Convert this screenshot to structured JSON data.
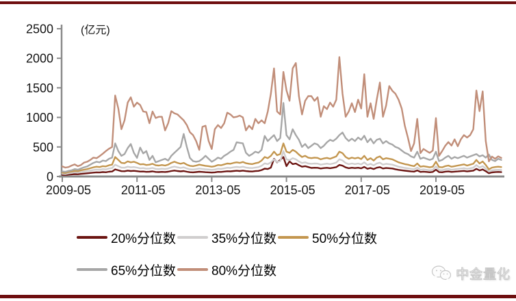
{
  "page": {
    "background": "#ffffff",
    "accent_bar_color": "#6e0e0f",
    "axis_color": "#8a8a8a",
    "text_color": "#151515"
  },
  "chart_data": {
    "type": "line",
    "title": "",
    "unit_label": "(亿元)",
    "x_freq": "monthly",
    "x_start": "2009-05",
    "x_end": "2021-02",
    "xlabel": "",
    "ylabel": "",
    "ylim": [
      0,
      2500
    ],
    "yticks": [
      0,
      500,
      1000,
      1500,
      2000,
      2500
    ],
    "xtick_labels": [
      "2009-05",
      "2011-05",
      "2013-05",
      "2015-05",
      "2017-05",
      "2019-05"
    ],
    "xtick_month_indices": [
      0,
      24,
      48,
      72,
      96,
      120
    ],
    "grid": false,
    "legend_position": "bottom-left",
    "series": [
      {
        "name": "20%分位数",
        "color": "#6b1411",
        "values": [
          28,
          26,
          32,
          36,
          41,
          38,
          44,
          49,
          54,
          60,
          66,
          71,
          68,
          75,
          72,
          81,
          85,
          120,
          105,
          90,
          89,
          99,
          93,
          96,
          90,
          83,
          85,
          79,
          81,
          87,
          77,
          75,
          79,
          76,
          81,
          93,
          101,
          93,
          87,
          93,
          81,
          73,
          71,
          75,
          81,
          77,
          73,
          71,
          67,
          71,
          79,
          77,
          83,
          89,
          87,
          93,
          97,
          93,
          99,
          91,
          87,
          85,
          91,
          95,
          109,
          133,
          126,
          150,
          300,
          240,
          280,
          330,
          175,
          256,
          210,
          220,
          190,
          165,
          175,
          160,
          145,
          148,
          147,
          135,
          142,
          147,
          140,
          148,
          158,
          196,
          183,
          154,
          140,
          148,
          142,
          148,
          138,
          162,
          131,
          144,
          126,
          148,
          158,
          135,
          144,
          140,
          135,
          123,
          112,
          105,
          98,
          93,
          86,
          82,
          103,
          77,
          82,
          77,
          72,
          77,
          116,
          74,
          72,
          82,
          86,
          77,
          82,
          86,
          90,
          95,
          86,
          93,
          100,
          130,
          103,
          119,
          90,
          56,
          70,
          74,
          77,
          74
        ]
      },
      {
        "name": "35%分位数",
        "color": "#d0cece",
        "values": [
          45,
          42,
          52,
          60,
          68,
          64,
          74,
          82,
          90,
          100,
          110,
          118,
          114,
          125,
          120,
          135,
          142,
          200,
          175,
          150,
          148,
          165,
          155,
          160,
          150,
          138,
          142,
          132,
          135,
          145,
          128,
          125,
          132,
          126,
          135,
          155,
          168,
          155,
          145,
          155,
          135,
          122,
          118,
          125,
          135,
          128,
          122,
          118,
          112,
          118,
          132,
          128,
          138,
          148,
          145,
          155,
          162,
          155,
          165,
          152,
          145,
          142,
          152,
          158,
          182,
          222,
          210,
          240,
          290,
          245,
          260,
          430,
          290,
          275,
          310,
          290,
          255,
          228,
          240,
          220,
          215,
          220,
          218,
          200,
          210,
          218,
          208,
          220,
          235,
          290,
          272,
          228,
          208,
          220,
          210,
          220,
          204,
          240,
          194,
          214,
          187,
          220,
          234,
          200,
          214,
          207,
          200,
          183,
          166,
          155,
          145,
          138,
          128,
          121,
          152,
          114,
          121,
          114,
          107,
          114,
          172,
          110,
          107,
          121,
          128,
          114,
          121,
          128,
          134,
          141,
          128,
          138,
          148,
          193,
          152,
          176,
          134,
          83,
          104,
          110,
          114,
          110
        ]
      },
      {
        "name": "50%分位数",
        "color": "#c3964f",
        "values": [
          65,
          60,
          75,
          85,
          95,
          90,
          105,
          115,
          125,
          140,
          155,
          165,
          160,
          175,
          170,
          190,
          200,
          330,
          280,
          230,
          225,
          256,
          240,
          250,
          230,
          205,
          210,
          195,
          200,
          215,
          190,
          185,
          195,
          185,
          200,
          230,
          250,
          230,
          215,
          230,
          200,
          180,
          175,
          185,
          200,
          190,
          180,
          175,
          165,
          175,
          195,
          190,
          205,
          220,
          215,
          230,
          240,
          230,
          245,
          225,
          215,
          210,
          225,
          235,
          270,
          330,
          310,
          350,
          420,
          360,
          380,
          560,
          420,
          400,
          450,
          420,
          370,
          330,
          350,
          320,
          310,
          320,
          315,
          290,
          305,
          315,
          300,
          320,
          340,
          420,
          395,
          330,
          300,
          320,
          305,
          320,
          295,
          350,
          280,
          310,
          270,
          320,
          340,
          290,
          310,
          300,
          290,
          265,
          240,
          225,
          210,
          200,
          185,
          175,
          220,
          165,
          175,
          165,
          155,
          165,
          250,
          160,
          155,
          175,
          185,
          165,
          175,
          185,
          195,
          205,
          185,
          200,
          215,
          280,
          220,
          255,
          195,
          120,
          150,
          160,
          165,
          160
        ]
      },
      {
        "name": "65%分位数",
        "color": "#a6a6a6",
        "values": [
          85,
          80,
          95,
          105,
          125,
          115,
          135,
          155,
          170,
          200,
          230,
          250,
          240,
          270,
          260,
          300,
          320,
          560,
          430,
          350,
          380,
          480,
          550,
          400,
          315,
          490,
          390,
          430,
          280,
          350,
          240,
          260,
          280,
          300,
          270,
          350,
          400,
          450,
          500,
          720,
          500,
          315,
          260,
          250,
          260,
          300,
          350,
          300,
          250,
          280,
          320,
          300,
          350,
          380,
          420,
          450,
          580,
          570,
          560,
          400,
          350,
          380,
          420,
          400,
          450,
          686,
          600,
          650,
          700,
          600,
          650,
          1244,
          700,
          628,
          800,
          700,
          620,
          500,
          550,
          480,
          520,
          560,
          540,
          480,
          520,
          580,
          620,
          600,
          640,
          700,
          744,
          650,
          600,
          640,
          600,
          660,
          620,
          690,
          580,
          640,
          560,
          620,
          640,
          560,
          600,
          560,
          540,
          500,
          480,
          440,
          400,
          380,
          340,
          320,
          420,
          300,
          320,
          300,
          280,
          300,
          420,
          260,
          280,
          320,
          350,
          300,
          330,
          310,
          330,
          350,
          320,
          340,
          360,
          380,
          340,
          360,
          320,
          372,
          280,
          260,
          300,
          280
        ]
      },
      {
        "name": "80%分位数",
        "color": "#c18e79",
        "values": [
          170,
          150,
          160,
          185,
          205,
          175,
          195,
          235,
          250,
          280,
          320,
          310,
          345,
          385,
          430,
          470,
          500,
          1370,
          1150,
          800,
          950,
          1250,
          1340,
          1180,
          1250,
          1210,
          1100,
          1090,
          900,
          1100,
          990,
          1010,
          1010,
          780,
          900,
          1105,
          1070,
          1050,
          1000,
          950,
          870,
          750,
          700,
          600,
          450,
          840,
          860,
          600,
          465,
          800,
          870,
          820,
          900,
          1080,
          1050,
          1000,
          1010,
          1030,
          1000,
          780,
          860,
          800,
          975,
          900,
          950,
          900,
          1100,
          1400,
          1830,
          1100,
          1050,
          1770,
          1460,
          1280,
          1830,
          1920,
          1360,
          1050,
          1280,
          1360,
          1360,
          1280,
          1340,
          1010,
          1190,
          1140,
          1250,
          1180,
          1300,
          2020,
          1400,
          1010,
          1100,
          1240,
          1090,
          1300,
          1150,
          1730,
          1010,
          1240,
          975,
          1300,
          1590,
          1010,
          1200,
          1530,
          1450,
          1400,
          1300,
          1150,
          860,
          660,
          430,
          560,
          975,
          395,
          465,
          430,
          400,
          440,
          988,
          350,
          430,
          520,
          582,
          523,
          628,
          512,
          628,
          700,
          660,
          700,
          800,
          1455,
          1105,
          1440,
          600,
          256,
          337,
          300,
          340,
          315
        ]
      }
    ]
  },
  "watermark": {
    "text": "中金量化",
    "icon": "wechat-icon"
  }
}
